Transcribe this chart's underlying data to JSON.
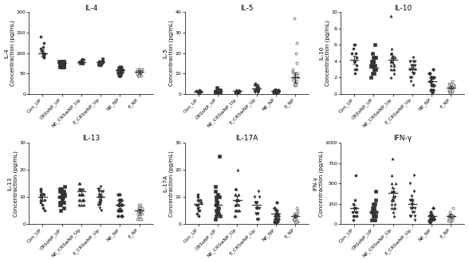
{
  "panels": [
    {
      "title": "IL-4",
      "ylabel": "IL-4\nConcentraction (pg/mL)",
      "ylim": [
        0,
        200
      ],
      "yticks": [
        0,
        50,
        100,
        150,
        200
      ],
      "groups": [
        {
          "label": "Con_UP",
          "marker": "o",
          "filled": true,
          "mean": 100,
          "sem": 8,
          "values": [
            100,
            115,
            125,
            105,
            95,
            90,
            140,
            100,
            105,
            95,
            90,
            110
          ]
        },
        {
          "label": "CRSsNP_UP",
          "marker": "s",
          "filled": true,
          "mean": 75,
          "sem": 4,
          "values": [
            70,
            75,
            80,
            65,
            70,
            80,
            75,
            65,
            70,
            80,
            70,
            65,
            70,
            75,
            65,
            70,
            75,
            80,
            65,
            70
          ]
        },
        {
          "label": "NE_CRSwNP_Up",
          "marker": "^",
          "filled": true,
          "mean": 78,
          "sem": 3,
          "values": [
            75,
            80,
            85,
            75,
            80,
            85,
            75,
            80,
            75,
            80,
            85,
            75,
            80,
            80,
            75,
            80,
            85,
            80,
            75,
            80
          ]
        },
        {
          "label": "E_CRSwNP_Up",
          "marker": "v",
          "filled": true,
          "mean": 78,
          "sem": 3,
          "values": [
            70,
            75,
            80,
            85,
            70,
            75,
            80,
            70,
            75,
            80,
            75,
            70,
            75,
            80,
            85,
            70,
            75,
            80,
            85,
            70
          ]
        },
        {
          "label": "NE_NP",
          "marker": "D",
          "filled": true,
          "mean": 58,
          "sem": 4,
          "values": [
            45,
            50,
            55,
            60,
            65,
            50,
            55,
            60,
            45,
            55,
            60,
            65,
            50,
            55,
            60,
            45,
            55,
            60,
            65,
            50
          ]
        },
        {
          "label": "E_NP",
          "marker": "o",
          "filled": false,
          "mean": 55,
          "sem": 4,
          "values": [
            45,
            50,
            55,
            60,
            50,
            55,
            45,
            60,
            50,
            55,
            60,
            45,
            50,
            55,
            60,
            50,
            55,
            45,
            60,
            50
          ]
        }
      ]
    },
    {
      "title": "IL-5",
      "ylabel": "IL-5\nConcentraction (pg/mL)",
      "ylim": [
        0,
        40
      ],
      "yticks": [
        0,
        10,
        20,
        30,
        40
      ],
      "groups": [
        {
          "label": "Con_UP",
          "marker": "o",
          "filled": true,
          "mean": 1.2,
          "sem": 0.3,
          "values": [
            0.5,
            1,
            1.5,
            1,
            0.5,
            1,
            2,
            1,
            0.5,
            1,
            1.5,
            1
          ]
        },
        {
          "label": "CRSsNP_UP",
          "marker": "s",
          "filled": true,
          "mean": 1.5,
          "sem": 0.4,
          "values": [
            0.5,
            1,
            2,
            1.5,
            0.5,
            1,
            2,
            1,
            3,
            0.5,
            1,
            1.5,
            0.5,
            1,
            2,
            0.5,
            1,
            2,
            1,
            0.5
          ]
        },
        {
          "label": "NE_CRSwNP_Up",
          "marker": "^",
          "filled": true,
          "mean": 1.5,
          "sem": 0.3,
          "values": [
            0.5,
            1,
            2,
            1.5,
            0.5,
            1,
            2,
            1,
            0.5,
            1,
            2,
            1,
            0.5,
            1,
            2,
            1,
            0.5,
            1,
            2,
            1
          ]
        },
        {
          "label": "E_CRSwNP_Up",
          "marker": "v",
          "filled": true,
          "mean": 2.5,
          "sem": 0.6,
          "values": [
            0.5,
            1,
            2,
            3,
            4,
            5,
            1,
            2,
            3,
            4,
            1,
            2,
            3,
            1,
            2,
            3,
            4,
            1,
            2,
            3
          ]
        },
        {
          "label": "NE_NP",
          "marker": "D",
          "filled": true,
          "mean": 1.5,
          "sem": 0.3,
          "values": [
            0.5,
            1,
            2,
            1,
            0.5,
            1,
            2,
            1.5,
            0.5,
            1,
            2,
            1,
            0.5,
            1,
            2,
            1,
            0.5,
            1,
            2,
            1
          ]
        },
        {
          "label": "E_NP",
          "marker": "o",
          "filled": false,
          "mean": 8,
          "sem": 2.5,
          "values": [
            4,
            5,
            6,
            7,
            8,
            9,
            10,
            11,
            12,
            15,
            20,
            25,
            37,
            4,
            5,
            6,
            7,
            8,
            9,
            10
          ]
        }
      ]
    },
    {
      "title": "IL-10",
      "ylabel": "IL-10\nConcentraction (pg/mL)",
      "ylim": [
        0,
        10
      ],
      "yticks": [
        0,
        2,
        4,
        6,
        8,
        10
      ],
      "groups": [
        {
          "label": "Con_UP",
          "marker": "o",
          "filled": true,
          "mean": 4.2,
          "sem": 0.5,
          "values": [
            2.5,
            3,
            3.5,
            4,
            4.5,
            5,
            5.5,
            6,
            3,
            4,
            5,
            6
          ]
        },
        {
          "label": "CRSsNP_UP",
          "marker": "s",
          "filled": true,
          "mean": 3.2,
          "sem": 0.3,
          "values": [
            2,
            2.5,
            3,
            3.5,
            4,
            4.5,
            6,
            2.5,
            3,
            3.5,
            4,
            3,
            3.5,
            4,
            4.5,
            3,
            3.5,
            4,
            4.5,
            5
          ]
        },
        {
          "label": "NE_CRSwNP_Up",
          "marker": "^",
          "filled": true,
          "mean": 4.2,
          "sem": 0.5,
          "values": [
            2,
            2.5,
            3,
            3.5,
            4,
            4.5,
            5,
            5.5,
            9.5,
            3,
            4,
            5,
            3.5,
            4,
            4.5,
            5,
            3,
            3.5,
            4,
            4.5
          ]
        },
        {
          "label": "E_CRSwNP_Up",
          "marker": "v",
          "filled": true,
          "mean": 3.0,
          "sem": 0.3,
          "values": [
            1,
            1.5,
            2,
            2.5,
            3,
            3.5,
            4,
            4.5,
            2,
            2.5,
            3,
            3.5,
            4,
            2.5,
            3,
            3.5,
            4,
            3,
            3.5,
            4
          ]
        },
        {
          "label": "NE_NP",
          "marker": "D",
          "filled": true,
          "mean": 1.5,
          "sem": 0.3,
          "values": [
            0.2,
            0.5,
            1,
            1.5,
            2,
            2.5,
            3,
            0.5,
            1,
            1.5,
            2,
            0.5,
            1,
            1.5,
            2,
            2.5,
            0.5,
            1,
            1.5,
            2
          ]
        },
        {
          "label": "E_NP",
          "marker": "o",
          "filled": false,
          "mean": 0.8,
          "sem": 0.15,
          "values": [
            0.2,
            0.4,
            0.6,
            0.8,
            1,
            1.2,
            1.5,
            0.4,
            0.6,
            0.8,
            1,
            0.3,
            0.5,
            0.8,
            1,
            1.2,
            0.4,
            0.6,
            0.8,
            1
          ]
        }
      ]
    },
    {
      "title": "IL-13",
      "ylabel": "IL-13\nConcentraction (pg/mL)",
      "ylim": [
        0,
        30
      ],
      "yticks": [
        0,
        10,
        20,
        30
      ],
      "groups": [
        {
          "label": "Con_UP",
          "marker": "o",
          "filled": true,
          "mean": 10,
          "sem": 1.5,
          "values": [
            5,
            7,
            9,
            11,
            13,
            8,
            10,
            12,
            6,
            9,
            11,
            13
          ]
        },
        {
          "label": "CRSsNP_UP",
          "marker": "s",
          "filled": true,
          "mean": 10,
          "sem": 1,
          "values": [
            5,
            7,
            9,
            11,
            13,
            8,
            10,
            12,
            6,
            8,
            10,
            12,
            8,
            10,
            12,
            14,
            7,
            9,
            11,
            13
          ]
        },
        {
          "label": "NE_CRSwNP_Up",
          "marker": "^",
          "filled": true,
          "mean": 12,
          "sem": 1,
          "values": [
            7,
            9,
            11,
            13,
            15,
            9,
            11,
            13,
            7,
            9,
            11,
            13,
            9,
            11,
            13,
            15,
            7,
            9,
            11,
            13
          ]
        },
        {
          "label": "E_CRSwNP_Up",
          "marker": "v",
          "filled": true,
          "mean": 10,
          "sem": 1,
          "values": [
            5,
            7,
            9,
            11,
            13,
            8,
            10,
            12,
            6,
            8,
            10,
            12,
            8,
            10,
            12,
            14,
            7,
            9,
            11,
            13
          ]
        },
        {
          "label": "NE_NP",
          "marker": "D",
          "filled": true,
          "mean": 7,
          "sem": 1,
          "values": [
            3,
            5,
            7,
            9,
            11,
            5,
            7,
            9,
            3,
            5,
            7,
            9,
            5,
            7,
            9,
            11,
            3,
            5,
            7,
            9
          ]
        },
        {
          "label": "E_NP",
          "marker": "o",
          "filled": false,
          "mean": 5,
          "sem": 0.8,
          "values": [
            2,
            3,
            4,
            5,
            6,
            7,
            4,
            5,
            6,
            2,
            4,
            5,
            6,
            3,
            5,
            6,
            7,
            2,
            4,
            5
          ]
        }
      ]
    },
    {
      "title": "IL-17A",
      "ylabel": "IL-17A\nConcentraction (pg/mL)",
      "ylim": [
        0,
        30
      ],
      "yticks": [
        0,
        10,
        20,
        30
      ],
      "groups": [
        {
          "label": "Con_UP",
          "marker": "o",
          "filled": true,
          "mean": 7.5,
          "sem": 1.2,
          "values": [
            3,
            5,
            7,
            9,
            11,
            5,
            7,
            9,
            4,
            6,
            8,
            10
          ]
        },
        {
          "label": "CRSsNP_UP",
          "marker": "s",
          "filled": true,
          "mean": 7,
          "sem": 1.5,
          "values": [
            2,
            4,
            6,
            8,
            10,
            12,
            14,
            25,
            3,
            5,
            7,
            9,
            11,
            4,
            6,
            8,
            10,
            3,
            5,
            7
          ]
        },
        {
          "label": "NE_CRSwNP_Up",
          "marker": "^",
          "filled": true,
          "mean": 9,
          "sem": 1.5,
          "values": [
            3,
            5,
            7,
            9,
            11,
            13,
            20,
            5,
            7,
            9,
            11,
            3,
            5,
            7,
            9,
            11,
            13,
            5,
            7,
            9
          ]
        },
        {
          "label": "E_CRSwNP_Up",
          "marker": "v",
          "filled": true,
          "mean": 7,
          "sem": 1.2,
          "values": [
            2,
            4,
            6,
            8,
            10,
            12,
            4,
            6,
            8,
            2,
            4,
            6,
            8,
            4,
            6,
            8,
            10,
            2,
            4,
            6
          ]
        },
        {
          "label": "NE_NP",
          "marker": "D",
          "filled": true,
          "mean": 4,
          "sem": 1,
          "values": [
            0.5,
            1,
            2,
            3,
            4,
            5,
            6,
            8,
            1,
            2,
            3,
            4,
            1,
            2,
            3,
            4,
            5,
            1,
            2,
            3
          ]
        },
        {
          "label": "E_NP",
          "marker": "o",
          "filled": false,
          "mean": 3,
          "sem": 0.5,
          "values": [
            1,
            2,
            3,
            4,
            5,
            6,
            1,
            2,
            3,
            2,
            3,
            4,
            1,
            2,
            3,
            4,
            1,
            2,
            3,
            4
          ]
        }
      ]
    },
    {
      "title": "IFN-γ",
      "ylabel": "IFN-γ\nConcentraction (pg/mL)",
      "ylim": [
        0,
        1000
      ],
      "yticks": [
        0,
        250,
        500,
        750,
        1000
      ],
      "groups": [
        {
          "label": "Con_UP",
          "marker": "o",
          "filled": true,
          "mean": 200,
          "sem": 40,
          "values": [
            50,
            100,
            150,
            200,
            250,
            300,
            600,
            100,
            150,
            200,
            100,
            150
          ]
        },
        {
          "label": "CRSsNP_UP",
          "marker": "s",
          "filled": true,
          "mean": 150,
          "sem": 30,
          "values": [
            50,
            100,
            150,
            200,
            250,
            300,
            400,
            100,
            150,
            200,
            50,
            100,
            150,
            200,
            250,
            100,
            150,
            200,
            100,
            150
          ]
        },
        {
          "label": "NE_CRSwNP_Up",
          "marker": "^",
          "filled": true,
          "mean": 380,
          "sem": 60,
          "values": [
            100,
            200,
            300,
            400,
            500,
            600,
            800,
            200,
            300,
            400,
            150,
            250,
            350,
            450,
            200,
            300,
            400,
            500,
            250,
            350
          ]
        },
        {
          "label": "E_CRSwNP_Up",
          "marker": "v",
          "filled": true,
          "mean": 250,
          "sem": 40,
          "values": [
            50,
            100,
            150,
            200,
            250,
            300,
            400,
            500,
            600,
            100,
            200,
            300,
            150,
            250,
            350,
            100,
            200,
            300,
            200,
            300
          ]
        },
        {
          "label": "NE_NP",
          "marker": "D",
          "filled": true,
          "mean": 100,
          "sem": 25,
          "values": [
            20,
            40,
            60,
            80,
            100,
            120,
            150,
            200,
            40,
            60,
            80,
            100,
            30,
            50,
            70,
            90,
            110,
            40,
            60,
            80
          ]
        },
        {
          "label": "E_NP",
          "marker": "o",
          "filled": false,
          "mean": 100,
          "sem": 20,
          "values": [
            30,
            50,
            70,
            90,
            100,
            120,
            150,
            200,
            50,
            70,
            90,
            110,
            40,
            60,
            80,
            100,
            50,
            70,
            90,
            110
          ]
        }
      ]
    }
  ],
  "tick_label_fontsize": 4.5,
  "axis_label_fontsize": 5,
  "title_fontsize": 6.5,
  "point_size": 5,
  "errorbar_capsize": 1.5,
  "errorbar_lw": 0.7,
  "scatter_jitter": 0.13,
  "mean_bar_half": 0.22,
  "mean_lw": 0.9
}
